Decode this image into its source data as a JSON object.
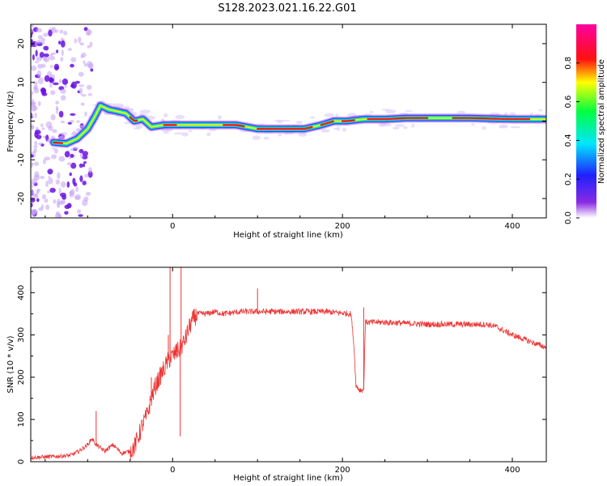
{
  "title": "S128.2023.021.16.22.G01",
  "chart_data": [
    {
      "type": "heatmap",
      "title": "S128.2023.021.16.22.G01",
      "xlabel": "Height of straight line (km)",
      "ylabel": "Frequency (Hz)",
      "xlim": [
        -167,
        440
      ],
      "ylim": [
        -25,
        25
      ],
      "xticks": [
        0,
        200,
        400
      ],
      "yticks": [
        -20,
        -10,
        0,
        10,
        20
      ],
      "colorbar": {
        "label": "Normalized spectral amplitude",
        "range": [
          0,
          1
        ],
        "ticks": [
          "0.0",
          "0.2",
          "0.4",
          "0.6",
          "0.8"
        ],
        "colormap": "rainbow (purple-blue-cyan-green-yellow-red-magenta)"
      },
      "ridge": {
        "description": "dominant frequency ridge",
        "x": [
          -140,
          -125,
          -112,
          -100,
          -92,
          -85,
          -75,
          -65,
          -55,
          -45,
          -35,
          -25,
          -10,
          0,
          25,
          50,
          75,
          100,
          125,
          155,
          175,
          190,
          205,
          225,
          250,
          275,
          300,
          350,
          400,
          440
        ],
        "y": [
          -5.5,
          -5.8,
          -4.5,
          -2,
          1,
          4,
          3,
          2.5,
          2,
          0,
          0.5,
          -1.5,
          -1,
          -1,
          -1,
          -1,
          -1,
          -2,
          -2,
          -2,
          -1,
          0,
          0,
          0.5,
          0.5,
          0.8,
          0.8,
          0.8,
          0.5,
          0.5
        ]
      },
      "background_scatter": {
        "description": "scattered noise at low heights",
        "x_range": [
          -167,
          -95
        ],
        "y_range": [
          -25,
          25
        ]
      }
    },
    {
      "type": "line",
      "xlabel": "Height of straight line (km)",
      "ylabel": "SNR (10 * v/v)",
      "xlim": [
        -167,
        440
      ],
      "ylim": [
        0,
        460
      ],
      "xticks": [
        0,
        200,
        400
      ],
      "yticks": [
        0,
        100,
        200,
        300,
        400
      ],
      "color": "#ee3333",
      "x": [
        -167,
        -140,
        -120,
        -110,
        -100,
        -95,
        -90,
        -80,
        -70,
        -60,
        -50,
        -45,
        -40,
        -35,
        -30,
        -25,
        -20,
        -15,
        -10,
        -5,
        0,
        5,
        10,
        15,
        20,
        25,
        30,
        40,
        50,
        60,
        80,
        100,
        150,
        180,
        210,
        213,
        216,
        220,
        225,
        227,
        230,
        250,
        300,
        350,
        370,
        380,
        390,
        400,
        420,
        440
      ],
      "y": [
        10,
        12,
        15,
        25,
        40,
        55,
        40,
        25,
        40,
        20,
        25,
        35,
        60,
        90,
        110,
        150,
        180,
        200,
        220,
        240,
        250,
        260,
        270,
        290,
        320,
        340,
        350,
        350,
        355,
        350,
        355,
        355,
        355,
        355,
        350,
        290,
        180,
        170,
        170,
        330,
        330,
        330,
        325,
        325,
        325,
        320,
        310,
        300,
        285,
        270
      ],
      "spikes": [
        {
          "x": -90,
          "y": 120
        },
        {
          "x": -25,
          "y": 200
        },
        {
          "x": -5,
          "y": 300
        },
        {
          "x": -3,
          "y": 460
        },
        {
          "x": 5,
          "y": 280
        },
        {
          "x": 9,
          "y": 60
        },
        {
          "x": 10,
          "y": 460
        },
        {
          "x": 100,
          "y": 410
        },
        {
          "x": 225,
          "y": 365
        }
      ]
    }
  ]
}
